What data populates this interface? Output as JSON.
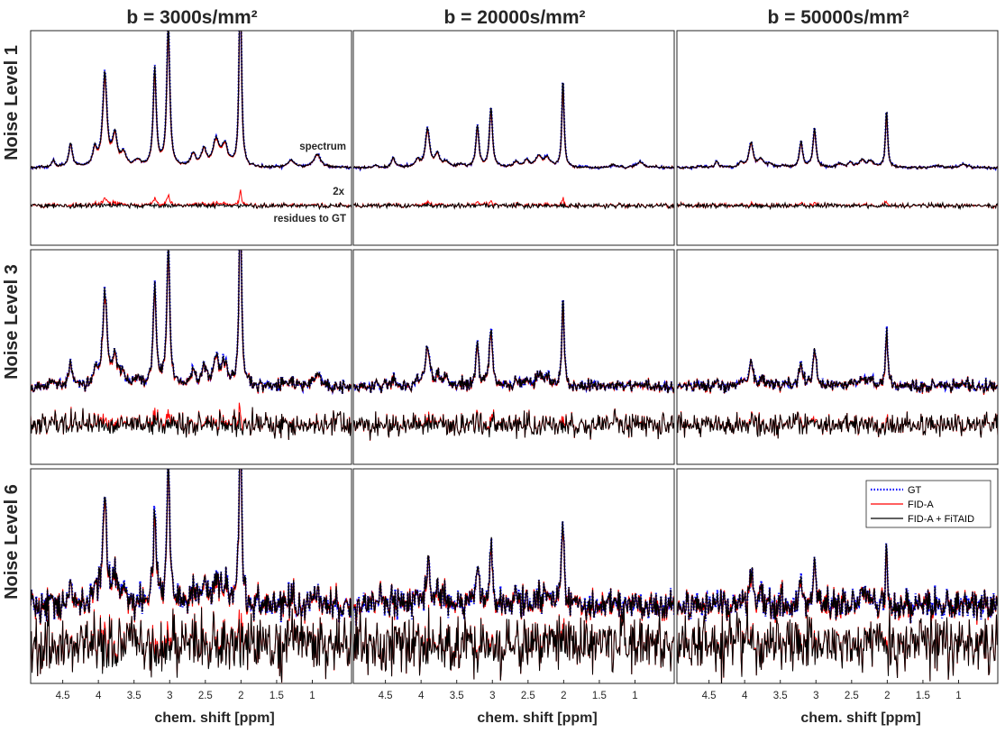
{
  "chart_data": {
    "type": "line",
    "xlabel": "chem. shift [ppm]",
    "x_reversed": true,
    "xlim": [
      0.45,
      4.95
    ],
    "x_ticks": [
      4.5,
      4,
      3.5,
      3,
      2.5,
      2,
      1.5,
      1
    ],
    "x_tick_labels": [
      "4.5",
      "4",
      "3.5",
      "3",
      "2.5",
      "2",
      "1.5",
      "1"
    ],
    "y_ticks": false,
    "grid": false,
    "legend": {
      "location": "top-right",
      "panel": "Noise Level 6 / b = 50000s/mm²",
      "entries": [
        {
          "name": "GT",
          "color": "#0000ff",
          "style": "dotted"
        },
        {
          "name": "FID-A",
          "color": "#ff0000",
          "style": "solid"
        },
        {
          "name": "FID-A + FiTAID",
          "color": "#000000",
          "style": "solid"
        }
      ]
    },
    "annotations": {
      "spectrum": "spectrum",
      "scale": "2x",
      "residues": "residues to GT"
    },
    "columns": [
      "b = 3000s/mm²",
      "b = 20000s/mm²",
      "b = 50000s/mm²"
    ],
    "rows": [
      "Noise Level 1",
      "Noise Level 3",
      "Noise Level 6"
    ],
    "peaks": [
      {
        "ppm": 4.63,
        "width": 0.03,
        "amp": 0.03
      },
      {
        "ppm": 4.39,
        "width": 0.03,
        "amp": 0.11
      },
      {
        "ppm": 4.05,
        "width": 0.035,
        "amp": 0.08
      },
      {
        "ppm": 3.91,
        "width": 0.035,
        "amp": 0.43
      },
      {
        "ppm": 3.77,
        "width": 0.04,
        "amp": 0.14
      },
      {
        "ppm": 3.65,
        "width": 0.04,
        "amp": 0.06
      },
      {
        "ppm": 3.45,
        "width": 0.05,
        "amp": 0.03
      },
      {
        "ppm": 3.21,
        "width": 0.025,
        "amp": 0.46
      },
      {
        "ppm": 3.02,
        "width": 0.025,
        "amp": 0.67
      },
      {
        "ppm": 2.67,
        "width": 0.04,
        "amp": 0.06
      },
      {
        "ppm": 2.52,
        "width": 0.04,
        "amp": 0.08
      },
      {
        "ppm": 2.35,
        "width": 0.05,
        "amp": 0.12
      },
      {
        "ppm": 2.23,
        "width": 0.05,
        "amp": 0.1
      },
      {
        "ppm": 2.01,
        "width": 0.018,
        "amp": 1.0
      },
      {
        "ppm": 1.3,
        "width": 0.06,
        "amp": 0.03
      },
      {
        "ppm": 0.93,
        "width": 0.06,
        "amp": 0.06
      }
    ],
    "peak_scale_by_column": [
      1.0,
      0.42,
      0.27
    ],
    "noise_by_row": [
      0.004,
      0.02,
      0.05
    ],
    "series_note": ""
  }
}
